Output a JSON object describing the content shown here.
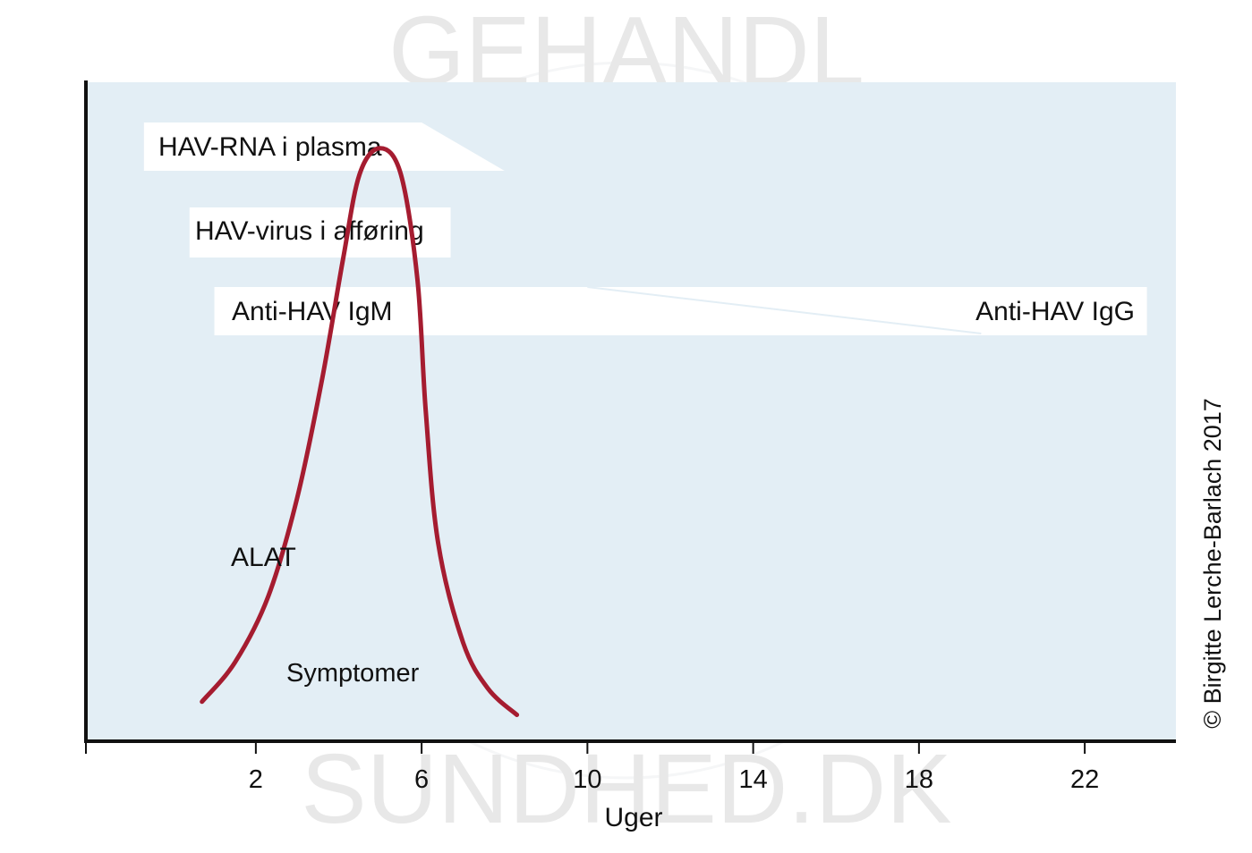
{
  "chart_data": {
    "type": "area",
    "xlabel": "Uger",
    "ylabel": "",
    "x_ticks": [
      2,
      6,
      10,
      14,
      18,
      22
    ],
    "xlim": [
      -2.1,
      24.2
    ],
    "ylim": [
      0,
      1
    ],
    "grid": false,
    "series": [
      {
        "name": "HAV-RNA i plasma",
        "shape": "band-tapering-end",
        "x_start": -0.7,
        "x_full_end": 6,
        "x_end": 8
      },
      {
        "name": "HAV-virus i afføring",
        "shape": "band",
        "x_start": 0.4,
        "x_end": 6.7
      },
      {
        "name": "Anti-HAV IgM",
        "shape": "band-with-transition",
        "x_start": 1,
        "x_transition_start": 10,
        "x_transition_end": 19.5,
        "x_end": 23.5
      },
      {
        "name": "Anti-HAV IgG",
        "shape": "band-with-transition",
        "x_start": 10,
        "x_end": 23.5
      },
      {
        "name": "ALAT",
        "shape": "peak-curve",
        "x": [
          0.7,
          1.5,
          2.3,
          3.0,
          3.6,
          4.1,
          4.5,
          5.0,
          5.5,
          5.9,
          6.1,
          6.4,
          7.0,
          7.6,
          8.3
        ],
        "y": [
          0.06,
          0.12,
          0.22,
          0.37,
          0.55,
          0.73,
          0.86,
          0.9,
          0.86,
          0.7,
          0.5,
          0.3,
          0.15,
          0.08,
          0.04
        ]
      },
      {
        "name": "Symptomer",
        "shape": "label",
        "x": 4.6
      }
    ],
    "legend": "none"
  },
  "copyright": "© Birgitte Lerche-Barlach 2017",
  "colors": {
    "plot_bg": "#e3eef5",
    "band": "#ffffff",
    "alat": "#a51c30",
    "axis": "#111111"
  },
  "watermark_text": [
    "GEHANDL",
    "SUNDHED.DK"
  ]
}
